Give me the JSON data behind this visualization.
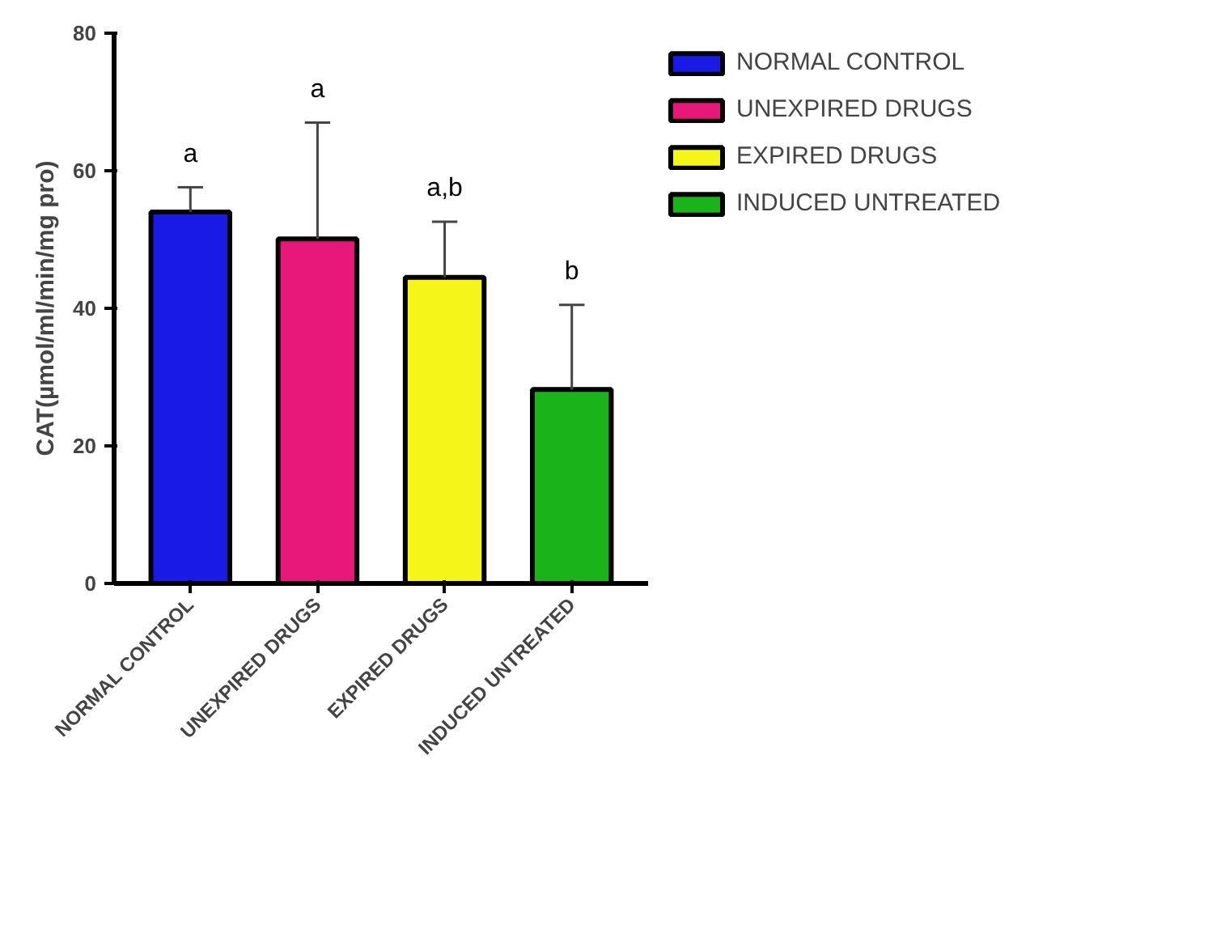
{
  "chart_data": {
    "type": "bar",
    "ylabel": "CAT(µmol/ml/min/mg pro)",
    "categories": [
      "NORMAL CONTROL",
      "UNEXPIRED DRUGS",
      "EXPIRED DRUGS",
      "INDUCED UNTREATED"
    ],
    "series": [
      {
        "name": "NORMAL CONTROL",
        "color": "#1a1ae6",
        "values": [
          54.0,
          null,
          null,
          null
        ],
        "errors": [
          [
            54.0,
            57.6
          ],
          null,
          null,
          null
        ]
      },
      {
        "name": "UNEXPIRED DRUGS",
        "color": "#e8187a",
        "values": [
          null,
          50.1,
          null,
          null
        ],
        "errors": [
          null,
          [
            50.1,
            67.0
          ],
          null,
          null
        ]
      },
      {
        "name": "EXPIRED DRUGS",
        "color": "#f5f51a",
        "values": [
          null,
          null,
          44.5,
          null
        ],
        "errors": [
          null,
          null,
          [
            44.5,
            52.6
          ],
          null
        ]
      },
      {
        "name": "INDUCED UNTREATED",
        "color": "#1ab41a",
        "values": [
          null,
          null,
          null,
          28.2
        ],
        "errors": [
          null,
          null,
          null,
          [
            28.2,
            40.5
          ]
        ]
      }
    ],
    "annotations": [
      {
        "text": "a",
        "x": "NORMAL CONTROL",
        "y": 57.6
      },
      {
        "text": "a",
        "x": "UNEXPIRED DRUGS",
        "y": 67.0
      },
      {
        "text": "a,b",
        "x": "EXPIRED DRUGS",
        "y": 52.6
      },
      {
        "text": "b",
        "x": "INDUCED UNTREATED",
        "y": 40.5
      }
    ],
    "ylim": [
      0,
      80
    ],
    "yticks": [
      0,
      20,
      40,
      60,
      80
    ],
    "legend": "top right"
  }
}
